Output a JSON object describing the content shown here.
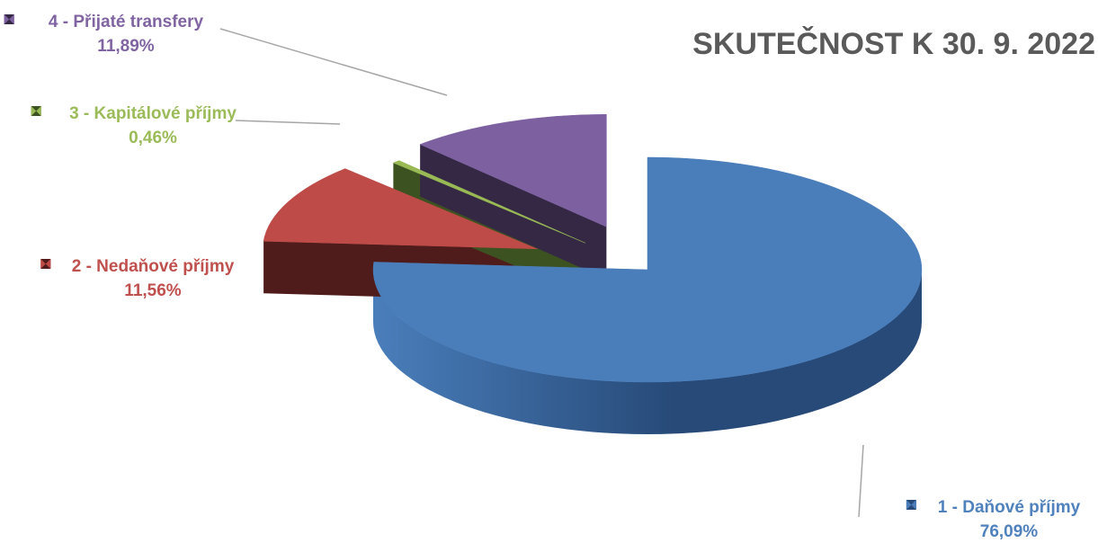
{
  "chart_data": {
    "type": "pie",
    "title": "SKUTEČNOST K 30. 9. 2022",
    "slices": [
      {
        "label": "1 - Daňové příjmy",
        "value": 76.09,
        "value_text": "76,09%",
        "color": "#4a7ebb",
        "side": "#274a78",
        "text_color": "#4f81bd"
      },
      {
        "label": "2 - Nedaňové příjmy",
        "value": 11.56,
        "value_text": "11,56%",
        "color": "#be4b48",
        "side": "#4f1c1b",
        "text_color": "#c0504d"
      },
      {
        "label": "3 - Kapitálové příjmy",
        "value": 0.46,
        "value_text": "0,46%",
        "color": "#98b954",
        "side": "#3d5221",
        "text_color": "#9bbb59"
      },
      {
        "label": "4 - Přijaté transfery",
        "value": 11.89,
        "value_text": "11,89%",
        "color": "#7d60a0",
        "side": "#352845",
        "text_color": "#8064a2"
      }
    ]
  }
}
